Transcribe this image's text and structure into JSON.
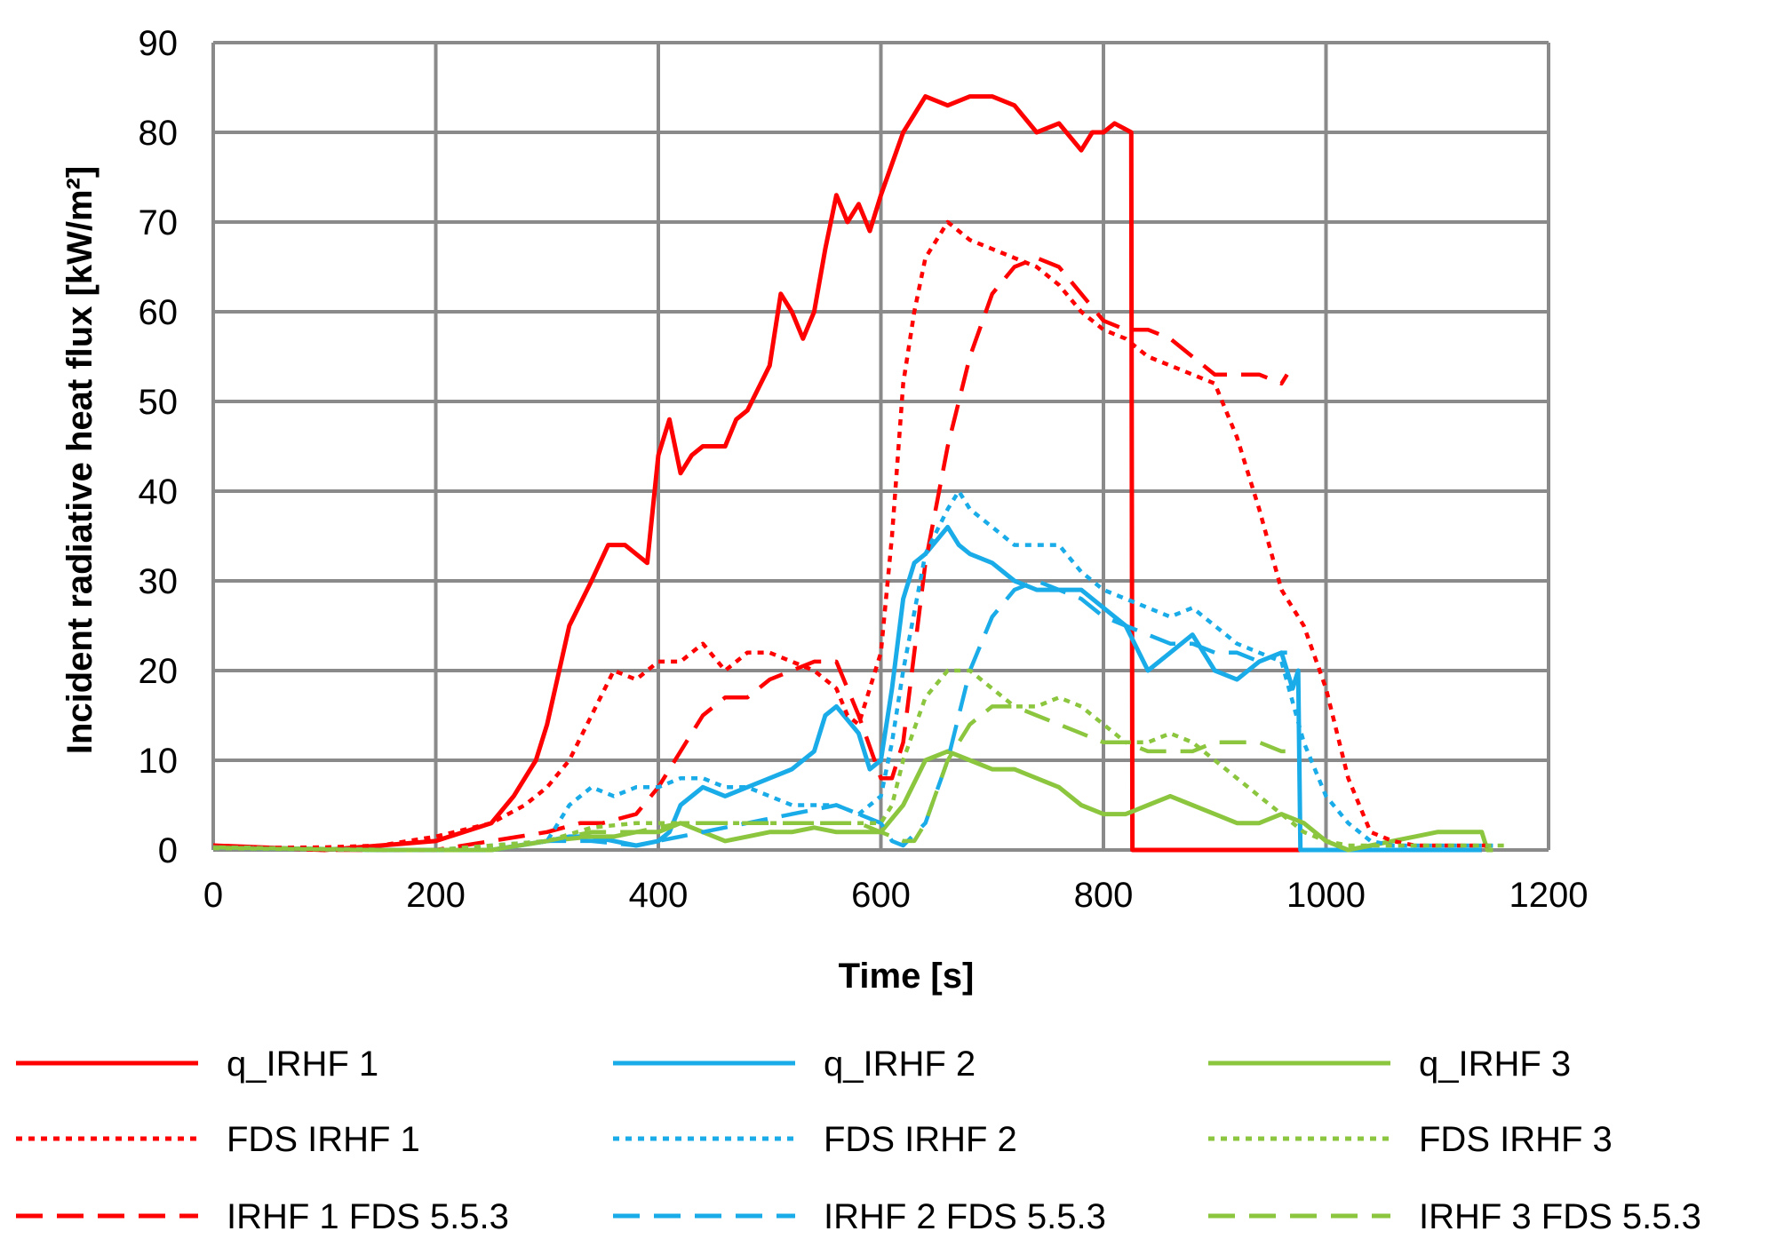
{
  "chart_data": {
    "type": "line",
    "title": "",
    "xlabel": "Time [s]",
    "ylabel": "Incident radiative heat flux [kW/m²]",
    "xlim": [
      0,
      1200
    ],
    "ylim": [
      0,
      90
    ],
    "x_ticks": [
      0,
      200,
      400,
      600,
      800,
      1000,
      1200
    ],
    "y_ticks": [
      0,
      10,
      20,
      30,
      40,
      50,
      60,
      70,
      80,
      90
    ],
    "grid": true,
    "legend_position": "bottom",
    "series": [
      {
        "name": "q_IRHF 1",
        "color": "#FF0000",
        "style": "solid",
        "x": [
          0,
          100,
          150,
          200,
          250,
          270,
          290,
          300,
          320,
          340,
          355,
          370,
          390,
          400,
          410,
          420,
          430,
          440,
          460,
          470,
          480,
          500,
          510,
          520,
          530,
          540,
          550,
          560,
          570,
          580,
          590,
          600,
          620,
          640,
          660,
          680,
          700,
          720,
          740,
          760,
          780,
          790,
          800,
          810,
          825,
          826,
          1140
        ],
        "y": [
          0.5,
          0,
          0.5,
          1,
          3,
          6,
          10,
          14,
          25,
          30,
          34,
          34,
          32,
          44,
          48,
          42,
          44,
          45,
          45,
          48,
          49,
          54,
          62,
          60,
          57,
          60,
          67,
          73,
          70,
          72,
          69,
          73,
          80,
          84,
          83,
          84,
          84,
          83,
          80,
          81,
          78,
          80,
          80,
          81,
          80,
          0,
          0
        ]
      },
      {
        "name": "q_IRHF 2",
        "color": "#1AACE8",
        "style": "solid",
        "x": [
          0,
          150,
          200,
          250,
          300,
          320,
          340,
          360,
          380,
          400,
          410,
          420,
          440,
          460,
          480,
          500,
          520,
          540,
          550,
          560,
          580,
          590,
          600,
          610,
          620,
          630,
          640,
          660,
          670,
          680,
          700,
          720,
          740,
          760,
          780,
          800,
          820,
          840,
          860,
          880,
          900,
          920,
          940,
          960,
          970,
          975,
          977,
          1140
        ],
        "y": [
          0.3,
          0,
          0,
          0,
          1,
          1.5,
          1.5,
          1,
          0.5,
          1,
          2,
          5,
          7,
          6,
          7,
          8,
          9,
          11,
          15,
          16,
          13,
          9,
          10,
          18,
          28,
          32,
          33,
          36,
          34,
          33,
          32,
          30,
          29,
          29,
          29,
          27,
          25,
          20,
          22,
          24,
          20,
          19,
          21,
          22,
          18,
          20,
          0,
          0
        ]
      },
      {
        "name": "q_IRHF 3",
        "color": "#8CC63F",
        "style": "solid",
        "x": [
          0,
          150,
          200,
          250,
          300,
          340,
          360,
          380,
          400,
          420,
          440,
          460,
          480,
          500,
          520,
          540,
          560,
          580,
          600,
          620,
          640,
          660,
          680,
          700,
          720,
          740,
          760,
          780,
          800,
          820,
          840,
          860,
          880,
          900,
          920,
          940,
          960,
          980,
          1000,
          1020,
          1040,
          1060,
          1080,
          1100,
          1140,
          1145,
          1150
        ],
        "y": [
          0.3,
          0,
          0,
          0,
          1,
          1.5,
          1.5,
          2,
          2,
          3,
          2,
          1,
          1.5,
          2,
          2,
          2.5,
          2,
          2,
          2,
          5,
          10,
          11,
          10,
          9,
          9,
          8,
          7,
          5,
          4,
          4,
          5,
          6,
          5,
          4,
          3,
          3,
          4,
          3,
          1,
          0,
          0.5,
          1,
          1.5,
          2,
          2,
          0,
          0
        ]
      },
      {
        "name": "FDS IRHF 1",
        "color": "#FF0000",
        "style": "dot",
        "x": [
          0,
          100,
          150,
          200,
          250,
          280,
          300,
          320,
          340,
          360,
          380,
          400,
          420,
          440,
          460,
          480,
          500,
          520,
          540,
          560,
          570,
          580,
          590,
          600,
          610,
          620,
          630,
          640,
          660,
          670,
          680,
          700,
          720,
          740,
          760,
          780,
          800,
          820,
          840,
          860,
          880,
          900,
          920,
          940,
          960,
          980,
          1000,
          1020,
          1040,
          1060,
          1080,
          1100,
          1150
        ],
        "y": [
          0.2,
          0.3,
          0.5,
          1.5,
          3,
          5,
          7,
          10,
          15,
          20,
          19,
          21,
          21,
          23,
          20,
          22,
          22,
          21,
          20,
          18,
          15,
          14,
          18,
          22,
          35,
          52,
          60,
          66,
          70,
          69,
          68,
          67,
          66,
          65,
          63,
          60,
          58,
          57,
          55,
          54,
          53,
          52,
          46,
          38,
          29,
          25,
          18,
          8,
          2,
          1,
          0.5,
          0.5,
          0.5
        ]
      },
      {
        "name": "FDS IRHF 2",
        "color": "#1AACE8",
        "style": "dot",
        "x": [
          0,
          150,
          200,
          250,
          300,
          320,
          340,
          360,
          380,
          400,
          420,
          440,
          460,
          480,
          500,
          520,
          540,
          560,
          580,
          600,
          610,
          620,
          640,
          660,
          670,
          680,
          700,
          720,
          740,
          760,
          780,
          800,
          820,
          840,
          860,
          880,
          900,
          920,
          940,
          960,
          980,
          1000,
          1020,
          1040,
          1060,
          1080,
          1100,
          1150
        ],
        "y": [
          0.2,
          0,
          0,
          0.5,
          1,
          5,
          7,
          6,
          7,
          7,
          8,
          8,
          7,
          7,
          6,
          5,
          5,
          5,
          4,
          6,
          12,
          20,
          33,
          38,
          40,
          38,
          36,
          34,
          34,
          34,
          31,
          29,
          28,
          27,
          26,
          27,
          25,
          23,
          22,
          21,
          12,
          6,
          3,
          1,
          0.5,
          0.5,
          0.5,
          0.5
        ]
      },
      {
        "name": "FDS IRHF 3",
        "color": "#8CC63F",
        "style": "dot",
        "x": [
          0,
          150,
          200,
          250,
          300,
          340,
          380,
          420,
          460,
          500,
          540,
          580,
          600,
          610,
          620,
          640,
          660,
          680,
          700,
          720,
          740,
          760,
          780,
          800,
          820,
          840,
          860,
          880,
          900,
          920,
          940,
          960,
          980,
          1000,
          1020,
          1040,
          1060,
          1100,
          1160
        ],
        "y": [
          0.2,
          0,
          0,
          0.5,
          1,
          2.5,
          3,
          3,
          3,
          3,
          3,
          3,
          3,
          5,
          10,
          17,
          20,
          20,
          18,
          16,
          16,
          17,
          16,
          14,
          12,
          12,
          13,
          12,
          10,
          8,
          6,
          4,
          2,
          1,
          0.5,
          0.5,
          0.5,
          0.5,
          0.5
        ]
      },
      {
        "name": "IRHF 1 FDS 5.5.3",
        "color": "#FF0000",
        "style": "dash",
        "x": [
          0,
          100,
          150,
          200,
          250,
          300,
          330,
          350,
          380,
          400,
          420,
          440,
          460,
          480,
          500,
          520,
          540,
          560,
          580,
          600,
          610,
          620,
          640,
          660,
          680,
          700,
          720,
          740,
          760,
          780,
          800,
          820,
          840,
          860,
          880,
          900,
          920,
          940,
          960,
          965
        ],
        "y": [
          0.5,
          0,
          0,
          0,
          1,
          2,
          3,
          3,
          4,
          7,
          11,
          15,
          17,
          17,
          19,
          20,
          21,
          21,
          15,
          8,
          8,
          12,
          32,
          45,
          55,
          62,
          65,
          66,
          65,
          62,
          59,
          58,
          58,
          57,
          55,
          53,
          53,
          53,
          52,
          53
        ]
      },
      {
        "name": "IRHF 2 FDS 5.5.3",
        "color": "#1AACE8",
        "style": "dash",
        "x": [
          0,
          150,
          200,
          250,
          300,
          340,
          380,
          400,
          440,
          480,
          520,
          560,
          580,
          600,
          610,
          620,
          640,
          660,
          680,
          700,
          720,
          740,
          760,
          780,
          800,
          820,
          840,
          860,
          880,
          900,
          920,
          940,
          960,
          965
        ],
        "y": [
          0.3,
          0,
          0,
          0,
          1,
          1,
          0.5,
          1,
          2,
          3,
          4,
          5,
          4,
          3,
          1,
          0.5,
          3,
          10,
          20,
          26,
          29,
          30,
          29,
          28,
          26,
          25,
          24,
          23,
          23,
          22,
          22,
          21,
          22,
          22
        ]
      },
      {
        "name": "IRHF 3 FDS 5.5.3",
        "color": "#8CC63F",
        "style": "dash",
        "x": [
          0,
          150,
          200,
          250,
          300,
          340,
          380,
          420,
          460,
          500,
          540,
          580,
          600,
          620,
          630,
          640,
          660,
          680,
          700,
          720,
          740,
          760,
          780,
          800,
          820,
          840,
          860,
          880,
          900,
          920,
          940,
          960,
          965
        ],
        "y": [
          0.3,
          0,
          0,
          0,
          1,
          2,
          2,
          3,
          3,
          3,
          3,
          3,
          2,
          1,
          1,
          3,
          10,
          14,
          16,
          16,
          15,
          14,
          13,
          12,
          12,
          11,
          11,
          11,
          12,
          12,
          12,
          11,
          11
        ]
      }
    ]
  }
}
